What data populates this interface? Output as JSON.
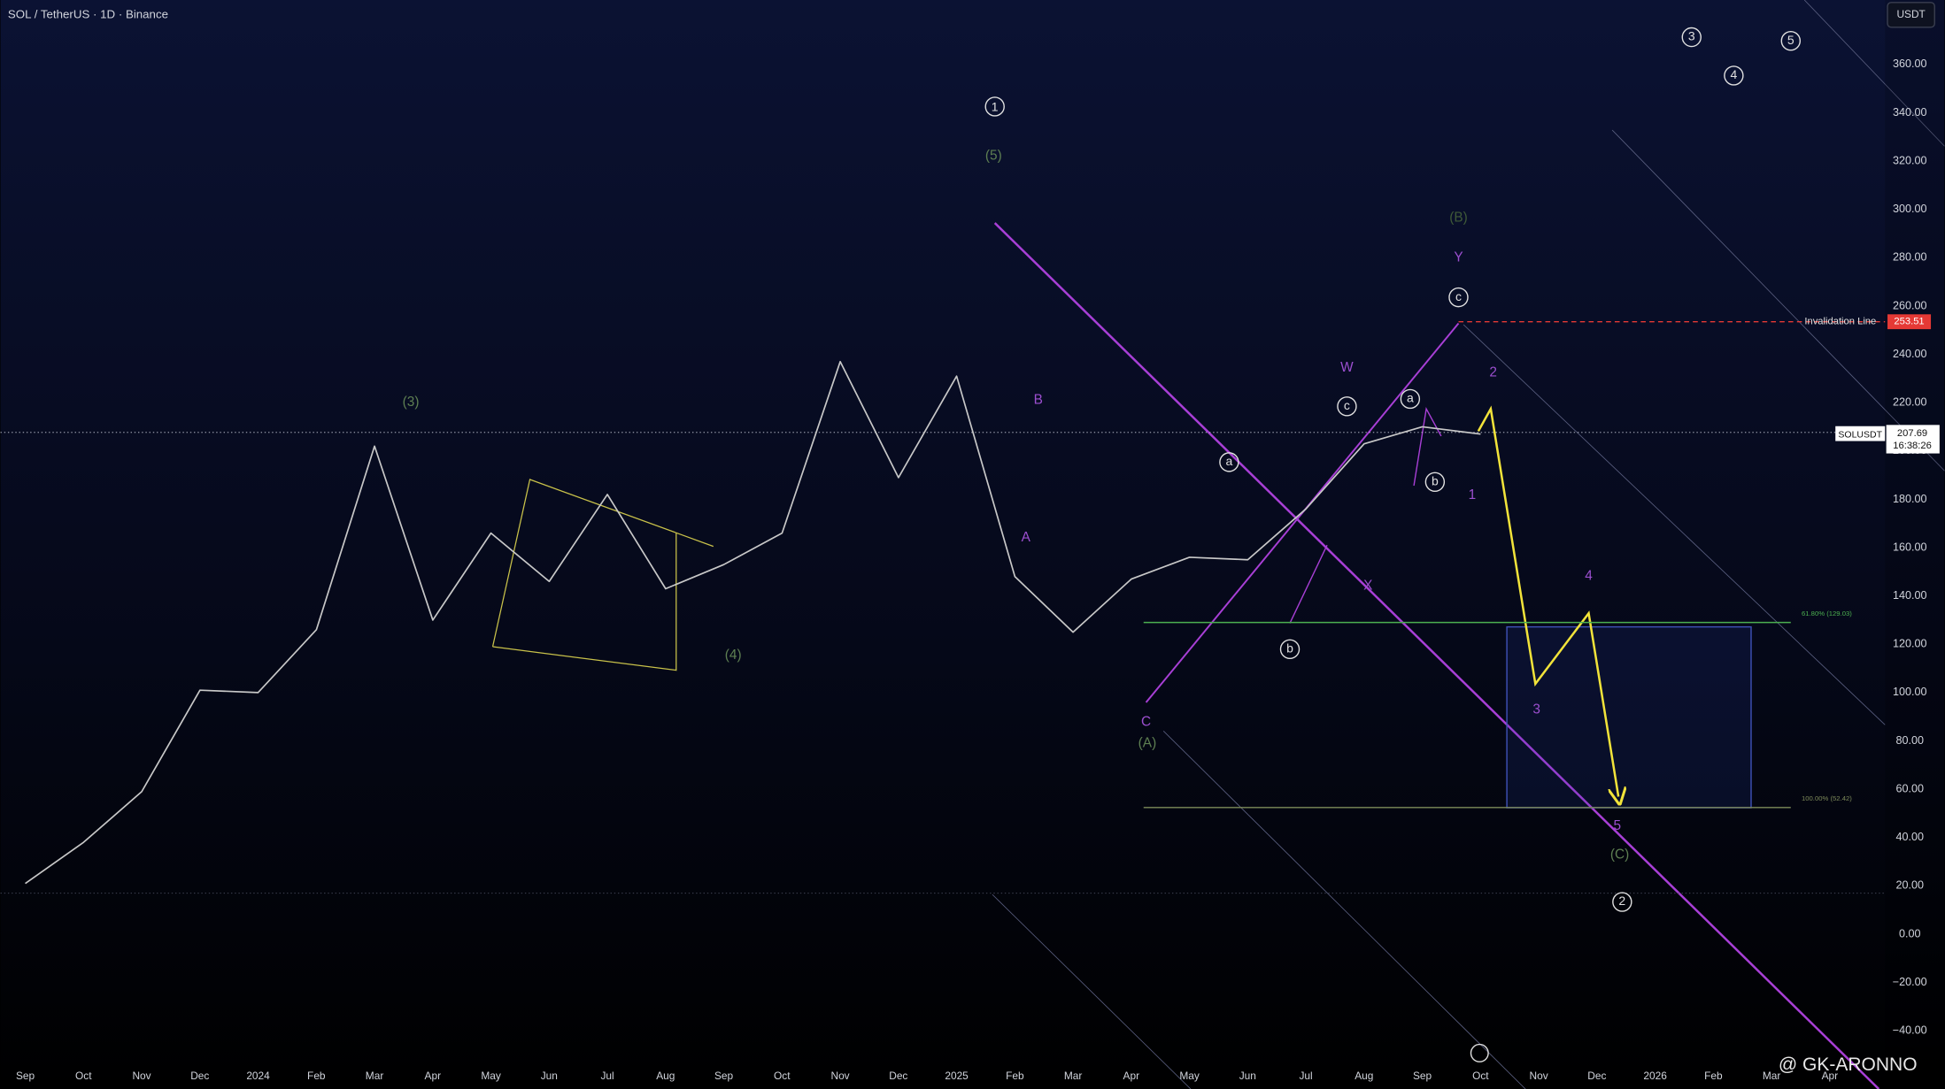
{
  "chart_data": {
    "type": "line",
    "title": "SOL / TetherUS · 1D · Binance",
    "currency": "USDT",
    "watermark": "@ GK-ARONNO",
    "series": [
      {
        "name": "SOLUSDT",
        "color": "#c8c8c8",
        "x": [
          "2023-09",
          "2023-10",
          "2023-11",
          "2023-12",
          "2024-01",
          "2024-02",
          "2024-03",
          "2024-04",
          "2024-05",
          "2024-06",
          "2024-07",
          "2024-08",
          "2024-09",
          "2024-10",
          "2024-11",
          "2024-12",
          "2025-01",
          "2025-02",
          "2025-03",
          "2025-04",
          "2025-05",
          "2025-06",
          "2025-07",
          "2025-08",
          "2025-09",
          "2025-10"
        ],
        "values": [
          21,
          38,
          59,
          101,
          100,
          126,
          202,
          130,
          166,
          146,
          182,
          143,
          153,
          166,
          237,
          189,
          231,
          148,
          125,
          147,
          156,
          155,
          176,
          203,
          210,
          207
        ]
      }
    ],
    "last_price": 207.69,
    "countdown": "16:38:26",
    "levels": [
      {
        "name": "Invalidation Line",
        "value": 253.51,
        "color": "#e53935"
      },
      {
        "label": "61.80% (129.03)",
        "value": 129.03,
        "color": "#4caf50"
      },
      {
        "label": "100.00% (52.42)",
        "value": 52.42,
        "color": "#7d8a5a"
      }
    ],
    "annotations": [
      "1",
      "(5)",
      "(3)",
      "(4)",
      "(B)",
      "Y",
      "c",
      "W",
      "c",
      "a",
      "b",
      "2",
      "1",
      "a",
      "b",
      "X",
      "B",
      "A",
      "C",
      "(A)",
      "4",
      "3",
      "5",
      "(C)",
      "2",
      "3",
      "4",
      "5"
    ],
    "ylim": [
      -64.1,
      386.7
    ],
    "yticks": [
      {
        "value": -40,
        "label": "−40.00"
      },
      {
        "value": -20,
        "label": "−20.00"
      },
      {
        "value": 0,
        "label": "0.00"
      },
      {
        "value": 20,
        "label": "20.00"
      },
      {
        "value": 40,
        "label": "40.00"
      },
      {
        "value": 60,
        "label": "60.00"
      },
      {
        "value": 80,
        "label": "80.00"
      },
      {
        "value": 100,
        "label": "100.00"
      },
      {
        "value": 120,
        "label": "120.00"
      },
      {
        "value": 140,
        "label": "140.00"
      },
      {
        "value": 160,
        "label": "160.00"
      },
      {
        "value": 180,
        "label": "180.00"
      },
      {
        "value": 200,
        "label": "200.00"
      },
      {
        "value": 220,
        "label": "220.00"
      },
      {
        "value": 240,
        "label": "240.00"
      },
      {
        "value": 260,
        "label": "260.00"
      },
      {
        "value": 280,
        "label": "280.00"
      },
      {
        "value": 300,
        "label": "300.00"
      },
      {
        "value": 320,
        "label": "320.00"
      },
      {
        "value": 340,
        "label": "340.00"
      },
      {
        "value": 360,
        "label": "360.00"
      }
    ],
    "xticks": [
      {
        "value": "2023-09",
        "label": "Sep"
      },
      {
        "value": "2023-10",
        "label": "Oct"
      },
      {
        "value": "2023-11",
        "label": "Nov"
      },
      {
        "value": "2023-12",
        "label": "Dec"
      },
      {
        "value": "2024-01",
        "label": "2024"
      },
      {
        "value": "2024-02",
        "label": "Feb"
      },
      {
        "value": "2024-03",
        "label": "Mar"
      },
      {
        "value": "2024-04",
        "label": "Apr"
      },
      {
        "value": "2024-05",
        "label": "May"
      },
      {
        "value": "2024-06",
        "label": "Jun"
      },
      {
        "value": "2024-07",
        "label": "Jul"
      },
      {
        "value": "2024-08",
        "label": "Aug"
      },
      {
        "value": "2024-09",
        "label": "Sep"
      },
      {
        "value": "2024-10",
        "label": "Oct"
      },
      {
        "value": "2024-11",
        "label": "Nov"
      },
      {
        "value": "2024-12",
        "label": "Dec"
      },
      {
        "value": "2025-01",
        "label": "2025"
      },
      {
        "value": "2025-02",
        "label": "Feb"
      },
      {
        "value": "2025-03",
        "label": "Mar"
      },
      {
        "value": "2025-04",
        "label": "Apr"
      },
      {
        "value": "2025-05",
        "label": "May"
      },
      {
        "value": "2025-06",
        "label": "Jun"
      },
      {
        "value": "2025-07",
        "label": "Jul"
      },
      {
        "value": "2025-08",
        "label": "Aug"
      },
      {
        "value": "2025-09",
        "label": "Sep"
      },
      {
        "value": "2025-10",
        "label": "Oct"
      },
      {
        "value": "2025-11",
        "label": "Nov"
      },
      {
        "value": "2025-12",
        "label": "Dec"
      },
      {
        "value": "2026-01",
        "label": "2026"
      },
      {
        "value": "2026-02",
        "label": "Feb"
      },
      {
        "value": "2026-03",
        "label": "Mar"
      },
      {
        "value": "2026-04",
        "label": "Apr"
      }
    ],
    "grid": false
  }
}
